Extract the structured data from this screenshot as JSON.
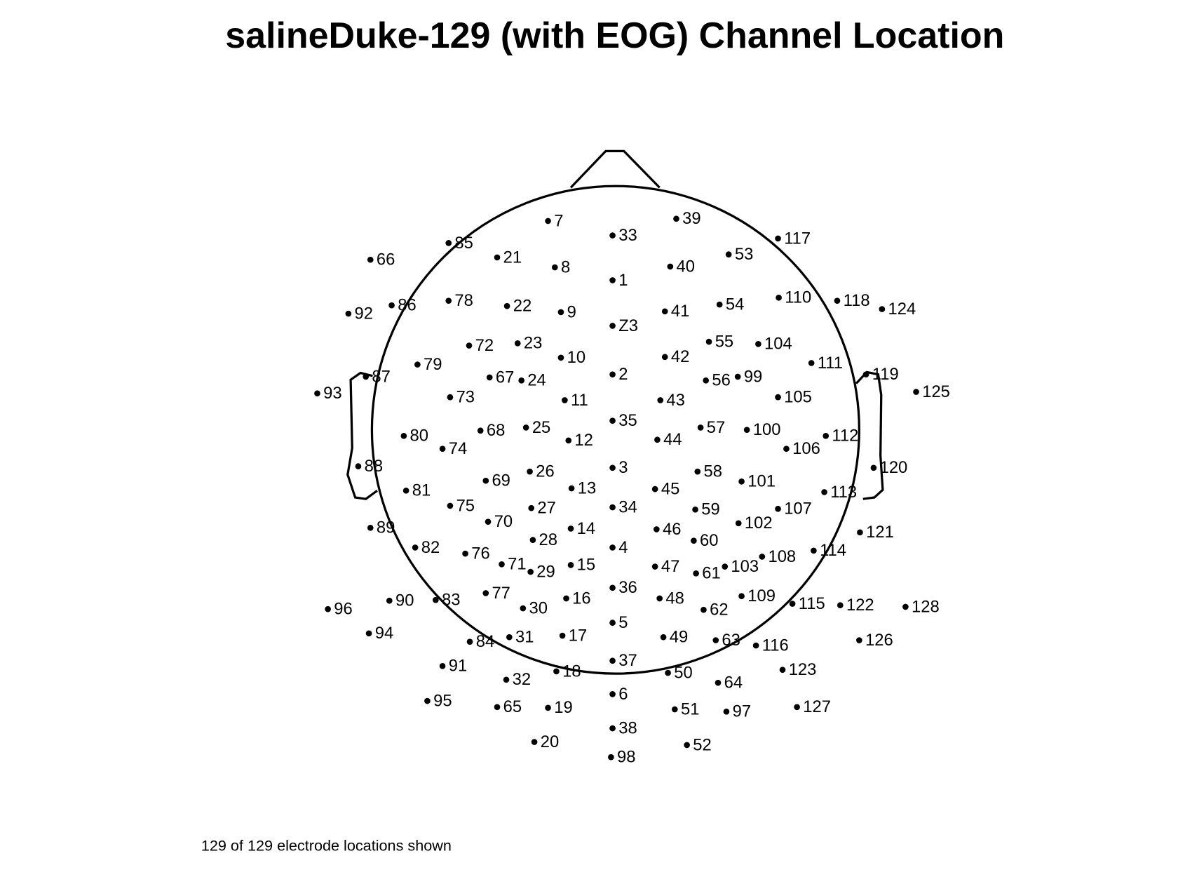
{
  "title": "salineDuke-129 (with EOG) Channel Location",
  "footer": "129 of 129 electrode locations shown",
  "electrodes": [
    "7",
    "33",
    "39",
    "117",
    "85",
    "66",
    "21",
    "53",
    "8",
    "40",
    "1",
    "92",
    "86",
    "78",
    "22",
    "9",
    "41",
    "54",
    "110",
    "118",
    "124",
    "Z3",
    "72",
    "23",
    "10",
    "42",
    "55",
    "104",
    "79",
    "111",
    "2",
    "87",
    "67",
    "24",
    "56",
    "99",
    "119",
    "93",
    "73",
    "11",
    "43",
    "105",
    "125",
    "35",
    "80",
    "68",
    "25",
    "12",
    "44",
    "57",
    "100",
    "112",
    "74",
    "106",
    "88",
    "3",
    "26",
    "58",
    "120",
    "69",
    "13",
    "45",
    "101",
    "81",
    "113",
    "75",
    "27",
    "34",
    "59",
    "107",
    "70",
    "14",
    "46",
    "102",
    "89",
    "121",
    "28",
    "60",
    "4",
    "82",
    "76",
    "114",
    "71",
    "29",
    "15",
    "47",
    "61",
    "103",
    "108",
    "36",
    "77",
    "16",
    "48",
    "109",
    "83",
    "90",
    "96",
    "30",
    "62",
    "115",
    "122",
    "128",
    "5",
    "94",
    "84",
    "31",
    "17",
    "49",
    "63",
    "116",
    "126",
    "37",
    "91",
    "18",
    "50",
    "123",
    "32",
    "64",
    "6",
    "95",
    "65",
    "19",
    "51",
    "97",
    "127",
    "38",
    "20",
    "52",
    "98"
  ]
}
